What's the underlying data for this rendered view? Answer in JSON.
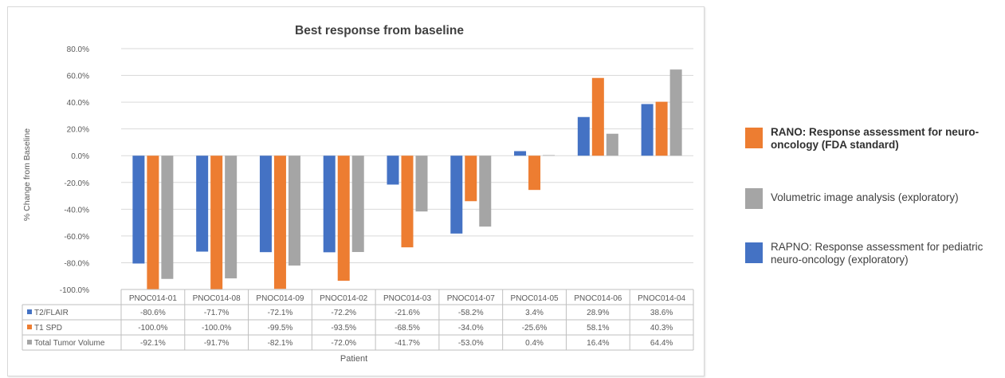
{
  "chart_data": {
    "type": "bar",
    "title": "Best response from baseline",
    "xlabel": "Patient",
    "ylabel": "% Change from Baseline",
    "ylim": [
      -100,
      80
    ],
    "yticks": [
      "80.0%",
      "60.0%",
      "40.0%",
      "20.0%",
      "0.0%",
      "-20.0%",
      "-40.0%",
      "-60.0%",
      "-80.0%",
      "-100.0%"
    ],
    "grid": true,
    "categories": [
      "PNOC014-01",
      "PNOC014-08",
      "PNOC014-09",
      "PNOC014-02",
      "PNOC014-03",
      "PNOC014-07",
      "PNOC014-05",
      "PNOC014-06",
      "PNOC014-04"
    ],
    "series": [
      {
        "name": "T2/FLAIR",
        "color": "#4472c4",
        "values": [
          -80.6,
          -71.7,
          -72.1,
          -72.2,
          -21.6,
          -58.2,
          3.4,
          28.9,
          38.6
        ],
        "labels": [
          "-80.6%",
          "-71.7%",
          "-72.1%",
          "-72.2%",
          "-21.6%",
          "-58.2%",
          "3.4%",
          "28.9%",
          "38.6%"
        ]
      },
      {
        "name": "T1 SPD",
        "color": "#ed7d31",
        "values": [
          -100.0,
          -100.0,
          -99.5,
          -93.5,
          -68.5,
          -34.0,
          -25.6,
          58.1,
          40.3
        ],
        "labels": [
          "-100.0%",
          "-100.0%",
          "-99.5%",
          "-93.5%",
          "-68.5%",
          "-34.0%",
          "-25.6%",
          "58.1%",
          "40.3%"
        ]
      },
      {
        "name": "Total Tumor Volume",
        "color": "#a5a5a5",
        "values": [
          -92.1,
          -91.7,
          -82.1,
          -72.0,
          -41.7,
          -53.0,
          0.4,
          16.4,
          64.4
        ],
        "labels": [
          "-92.1%",
          "-91.7%",
          "-82.1%",
          "-72.0%",
          "-41.7%",
          "-53.0%",
          "0.4%",
          "16.4%",
          "64.4%"
        ]
      }
    ]
  },
  "side_legend": [
    {
      "color": "#ed7d31",
      "bold": true,
      "lines": [
        "RANO: Response assessment for neuro-",
        "oncology (FDA standard)"
      ]
    },
    {
      "color": "#a5a5a5",
      "bold": false,
      "lines": [
        "Volumetric image analysis (exploratory)"
      ]
    },
    {
      "color": "#4472c4",
      "bold": false,
      "lines": [
        "RAPNO: Response assessment for pediatric",
        "neuro-oncology (exploratory)"
      ]
    }
  ]
}
